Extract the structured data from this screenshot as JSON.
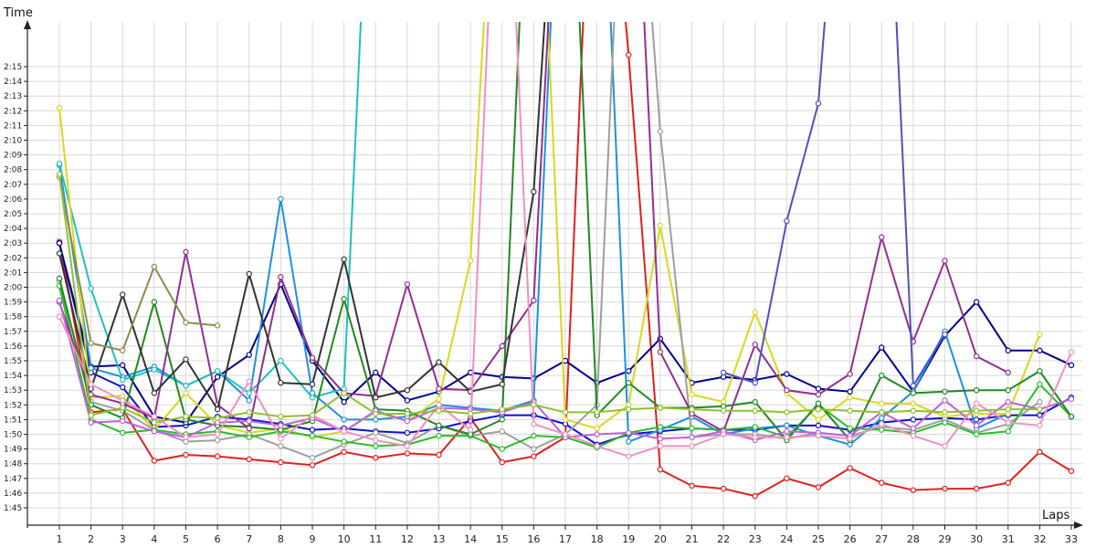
{
  "chart_data": {
    "type": "line",
    "ylabel": "Time",
    "xlabel": "Laps",
    "x": [
      1,
      2,
      3,
      4,
      5,
      6,
      7,
      8,
      9,
      10,
      11,
      12,
      13,
      14,
      15,
      16,
      17,
      18,
      19,
      20,
      21,
      22,
      23,
      24,
      25,
      26,
      27,
      28,
      29,
      30,
      31,
      32,
      33
    ],
    "ytick_labels": [
      "1:45",
      "1:46",
      "1:47",
      "1:48",
      "1:49",
      "1:50",
      "1:51",
      "1:52",
      "1:53",
      "1:54",
      "1:55",
      "1:56",
      "1:57",
      "1:58",
      "1:59",
      "2:00",
      "2:01",
      "2:02",
      "2:03",
      "2:04",
      "2:05",
      "2:06",
      "2:07",
      "2:08",
      "2:09",
      "2:10",
      "2:11",
      "2:12",
      "2:13",
      "2:14",
      "2:15"
    ],
    "ytick_seconds": [
      105,
      106,
      107,
      108,
      109,
      110,
      111,
      112,
      113,
      114,
      115,
      116,
      117,
      118,
      119,
      120,
      121,
      122,
      123,
      124,
      125,
      126,
      127,
      128,
      129,
      130,
      131,
      132,
      133,
      134,
      135
    ],
    "ylim_seconds": [
      104,
      139
    ],
    "grid": true,
    "series": [
      {
        "color": "#e02020",
        "values": [
          123.1,
          111.5,
          111.7,
          108.2,
          108.6,
          108.5,
          108.3,
          108.1,
          107.9,
          108.8,
          108.4,
          108.7,
          108.6,
          111.1,
          108.1,
          108.5,
          109.8,
          160,
          135.8,
          107.6,
          106.5,
          106.3,
          105.8,
          107.0,
          106.4,
          107.7,
          106.7,
          106.2,
          106.3,
          106.3,
          106.7,
          108.8,
          107.5
        ]
      },
      {
        "color": "#1010c8",
        "values": [
          123.0,
          114.2,
          113.2,
          110.5,
          110.6,
          111.2,
          111.0,
          110.7,
          110.3,
          110.4,
          110.2,
          110.1,
          110.4,
          110.9,
          111.3,
          111.3,
          110.7,
          109.3,
          110.0,
          110.2,
          110.4,
          110.3,
          110.3,
          110.6,
          110.6,
          110.3,
          110.8,
          111.0,
          111.1,
          111.0,
          111.3,
          111.3,
          112.5
        ]
      },
      {
        "color": "#00008b",
        "values": [
          123.0,
          114.6,
          114.7,
          111.2,
          110.8,
          113.9,
          115.4,
          120.2,
          115.0,
          112.2,
          114.2,
          112.3,
          112.9,
          114.2,
          113.9,
          113.8,
          115.0,
          113.5,
          114.3,
          116.5,
          113.5,
          113.9,
          113.7,
          114.1,
          113.1,
          112.9,
          115.9,
          112.9,
          116.7,
          119.0,
          115.7,
          115.7,
          114.7
        ]
      },
      {
        "color": "#1e90e0",
        "values": [
          128.3,
          114.5,
          113.9,
          114.6,
          113.3,
          114.3,
          112.3,
          126.0,
          112.8,
          111.0,
          111.0,
          111.2,
          112.0,
          111.8,
          111.6,
          112.3,
          160,
          160,
          109.5,
          110.3,
          111.2,
          110.0,
          110.4,
          110.6,
          109.9,
          109.3,
          111.1,
          112.9,
          117.0,
          110.4,
          111.4,
          null,
          null
        ]
      },
      {
        "color": "#20c0c0",
        "values": [
          128.4,
          119.9,
          113.7,
          114.4,
          113.3,
          114.3,
          112.8,
          115.0,
          112.5,
          113.1,
          160,
          null,
          null,
          null,
          null,
          null,
          null,
          null,
          null,
          null,
          null,
          null,
          null,
          null,
          null,
          null,
          null,
          null,
          null,
          null,
          null,
          null,
          null
        ]
      },
      {
        "color": "#d8d820",
        "values": [
          132.2,
          112.5,
          112.6,
          110.3,
          112.8,
          110.6,
          110.1,
          110.4,
          109.8,
          110.2,
          111.5,
          110.9,
          112.4,
          121.8,
          160,
          160,
          111.0,
          110.4,
          112.0,
          124.2,
          112.7,
          112.2,
          118.3,
          112.8,
          111.0,
          112.5,
          112.1,
          112.1,
          111.2,
          111.4,
          111.4,
          116.8,
          null
        ]
      },
      {
        "color": "#9e9e9e",
        "values": [
          120.4,
          112.2,
          111.6,
          110.3,
          109.5,
          109.6,
          110.0,
          109.2,
          108.4,
          109.3,
          110.1,
          109.4,
          110.6,
          109.9,
          110.2,
          109.0,
          110.0,
          112.0,
          160,
          130.6,
          109.8,
          110.0,
          110.0,
          109.7,
          110.1,
          109.9,
          110.5,
          110.3,
          111.0,
          110.1,
          110.7,
          112.2,
          null
        ]
      },
      {
        "color": "#2bbd2b",
        "values": [
          120.1,
          111.0,
          110.1,
          110.3,
          110.0,
          110.2,
          109.8,
          110.2,
          109.9,
          109.5,
          109.2,
          109.3,
          109.9,
          109.9,
          109.0,
          109.9,
          109.8,
          109.1,
          110.1,
          110.5,
          110.4,
          110.3,
          110.5,
          109.8,
          112.0,
          110.4,
          110.3,
          110.1,
          110.8,
          110.0,
          110.2,
          113.4,
          111.2
        ]
      },
      {
        "color": "#228822",
        "values": [
          120.6,
          112.0,
          111.1,
          119.0,
          111.0,
          110.6,
          110.5,
          110.3,
          110.9,
          119.2,
          111.7,
          111.6,
          110.6,
          110.0,
          111.0,
          160,
          160,
          111.3,
          113.5,
          111.8,
          111.8,
          111.9,
          112.2,
          109.6,
          112.1,
          109.6,
          114.0,
          112.8,
          112.9,
          113.0,
          113.0,
          114.3,
          111.2
        ]
      },
      {
        "color": "#903090",
        "values": [
          119.0,
          112.7,
          112.1,
          111.1,
          122.4,
          112.0,
          110.4,
          120.7,
          115.2,
          112.8,
          112.6,
          120.2,
          113.1,
          113.0,
          116.0,
          119.1,
          160,
          160,
          160,
          115.6,
          111.4,
          110.2,
          116.1,
          113.0,
          112.7,
          114.1,
          123.4,
          116.3,
          121.8,
          115.3,
          114.2,
          null,
          null
        ]
      },
      {
        "color": "#333333",
        "values": [
          122.3,
          113.1,
          119.5,
          112.8,
          115.1,
          111.7,
          120.9,
          113.5,
          113.4,
          121.9,
          112.5,
          113.0,
          114.9,
          112.9,
          113.4,
          126.5,
          160,
          null,
          null,
          null,
          null,
          null,
          null,
          null,
          null,
          null,
          null,
          null,
          null,
          null,
          null,
          null,
          null
        ]
      },
      {
        "color": "#c060e0",
        "values": [
          119.1,
          110.8,
          110.9,
          110.2,
          109.8,
          110.8,
          110.9,
          110.6,
          111.1,
          110.2,
          111.6,
          110.9,
          111.8,
          111.7,
          111.5,
          112.2,
          109.8,
          110.0,
          110.1,
          109.7,
          109.8,
          110.2,
          109.6,
          110.2,
          110.1,
          109.9,
          111.5,
          110.4,
          112.3,
          110.6,
          112.2,
          111.7,
          112.4
        ]
      },
      {
        "color": "#f090c0",
        "values": [
          118.0,
          113.4,
          112.3,
          111.2,
          109.8,
          110.0,
          113.6,
          109.7,
          111.3,
          110.2,
          109.6,
          109.2,
          112.0,
          110.3,
          160,
          110.7,
          110.0,
          109.2,
          108.5,
          109.2,
          109.2,
          110.0,
          109.8,
          109.8,
          109.9,
          109.7,
          110.7,
          109.9,
          109.2,
          112.1,
          110.8,
          110.6,
          115.6
        ]
      },
      {
        "color": "#8c8c50",
        "values": [
          127.5,
          116.2,
          115.7,
          121.4,
          117.6,
          117.4,
          null,
          null,
          null,
          null,
          null,
          null,
          null,
          null,
          null,
          null,
          null,
          null,
          null,
          null,
          null,
          null,
          null,
          null,
          null,
          null,
          null,
          null,
          null,
          null,
          null,
          null,
          null
        ]
      },
      {
        "color": "#90c030",
        "values": [
          127.7,
          111.3,
          111.8,
          110.8,
          111.2,
          111.1,
          111.5,
          111.2,
          111.3,
          112.8,
          111.4,
          111.4,
          111.6,
          111.4,
          111.7,
          112.0,
          111.5,
          111.5,
          111.7,
          111.8,
          111.7,
          111.6,
          111.6,
          111.5,
          111.7,
          111.6,
          111.5,
          111.6,
          111.5,
          111.6,
          111.7,
          111.7,
          null
        ]
      },
      {
        "color": "#5050c0",
        "values": [
          null,
          null,
          null,
          null,
          null,
          null,
          null,
          null,
          null,
          null,
          null,
          null,
          null,
          null,
          null,
          null,
          null,
          null,
          null,
          null,
          null,
          114.2,
          113.5,
          124.5,
          132.5,
          160,
          160,
          113.3,
          116.8,
          null,
          null,
          null,
          null
        ]
      }
    ]
  }
}
